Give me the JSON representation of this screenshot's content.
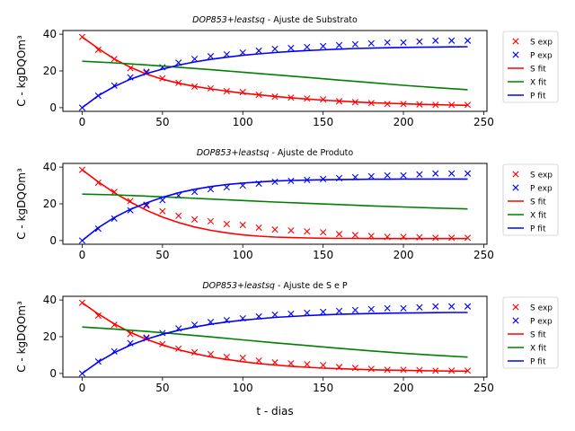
{
  "colors": {
    "S": "#ff0000",
    "X": "#008000",
    "P": "#0000ff",
    "axis": "#000000"
  },
  "chart_data": [
    {
      "type": "line",
      "title": "DOP853+leastsq - Ajuste de Substrato",
      "title_italic": "DOP853+leastsq",
      "title_rest": " - Ajuste de Substrato",
      "xlabel": "",
      "ylabel": "C - kgDQOm³",
      "xlim": [
        -12,
        252
      ],
      "ylim": [
        -2,
        42
      ],
      "xticks": [
        0,
        50,
        100,
        150,
        200,
        250
      ],
      "yticks": [
        0,
        20,
        40
      ],
      "legend": {
        "placement": "right",
        "entries": [
          "S exp",
          "P exp",
          "S fit",
          "X fit",
          "P fit"
        ]
      },
      "series": [
        {
          "name": "S exp",
          "kind": "scatter",
          "color": "S",
          "x": [
            0,
            10,
            20,
            30,
            40,
            50,
            60,
            70,
            80,
            90,
            100,
            110,
            120,
            130,
            140,
            150,
            160,
            170,
            180,
            190,
            200,
            210,
            220,
            230,
            240
          ],
          "y": [
            38.5,
            31.5,
            26.5,
            21.5,
            19,
            16,
            13.5,
            11.5,
            10.5,
            9,
            8.5,
            7,
            6,
            5.5,
            5,
            4.5,
            3.5,
            3,
            2.5,
            2,
            2,
            1.8,
            1.5,
            1.5,
            1.5
          ]
        },
        {
          "name": "P exp",
          "kind": "scatter",
          "color": "P",
          "x": [
            0,
            10,
            20,
            30,
            40,
            50,
            60,
            70,
            80,
            90,
            100,
            110,
            120,
            130,
            140,
            150,
            160,
            170,
            180,
            190,
            200,
            210,
            220,
            230,
            240
          ],
          "y": [
            0,
            6.5,
            12,
            16.5,
            19.5,
            22,
            24.5,
            26.5,
            28,
            29,
            30,
            31,
            32,
            32.5,
            33,
            33.5,
            34,
            34.5,
            35,
            35.5,
            35.5,
            36,
            36.5,
            36.5,
            36.5
          ]
        },
        {
          "name": "S fit",
          "kind": "line",
          "color": "S",
          "x": [
            0,
            10,
            20,
            30,
            40,
            50,
            60,
            70,
            80,
            90,
            100,
            110,
            120,
            130,
            140,
            150,
            160,
            170,
            180,
            190,
            200,
            210,
            220,
            230,
            240
          ],
          "y": [
            38.5,
            32.2,
            26.5,
            22,
            18.3,
            15.5,
            13.3,
            11.6,
            10.2,
            9,
            7.9,
            7,
            6.1,
            5.4,
            4.7,
            4.1,
            3.6,
            3.1,
            2.7,
            2.4,
            2.1,
            1.8,
            1.6,
            1.4,
            1.3
          ]
        },
        {
          "name": "X fit",
          "kind": "line",
          "color": "X",
          "x": [
            0,
            20,
            40,
            60,
            80,
            100,
            120,
            140,
            160,
            180,
            200,
            220,
            240
          ],
          "y": [
            25.3,
            24.4,
            23.3,
            22,
            20.7,
            19.3,
            17.9,
            16.5,
            15,
            13.6,
            12.2,
            10.9,
            9.8
          ]
        },
        {
          "name": "P fit",
          "kind": "line",
          "color": "P",
          "x": [
            0,
            10,
            20,
            30,
            40,
            50,
            60,
            70,
            80,
            90,
            100,
            110,
            120,
            130,
            140,
            150,
            160,
            170,
            180,
            190,
            200,
            210,
            220,
            230,
            240
          ],
          "y": [
            0,
            6.5,
            11.5,
            15.5,
            18.6,
            21,
            23.2,
            24.9,
            26.3,
            27.5,
            28.5,
            29.3,
            30,
            30.6,
            31.1,
            31.5,
            31.9,
            32.2,
            32.4,
            32.6,
            32.8,
            32.9,
            33,
            33.1,
            33.2
          ]
        }
      ]
    },
    {
      "type": "line",
      "title": "DOP853+leastsq - Ajuste de Produto",
      "title_italic": "DOP853+leastsq",
      "title_rest": " - Ajuste de Produto",
      "xlabel": "",
      "ylabel": "C - kgDQOm³",
      "xlim": [
        -12,
        252
      ],
      "ylim": [
        -2,
        42
      ],
      "xticks": [
        0,
        50,
        100,
        150,
        200,
        250
      ],
      "yticks": [
        0,
        20,
        40
      ],
      "legend": {
        "placement": "right",
        "entries": [
          "S exp",
          "P exp",
          "S fit",
          "X fit",
          "P fit"
        ]
      },
      "series": [
        {
          "name": "S exp",
          "kind": "scatter",
          "color": "S",
          "x": [
            0,
            10,
            20,
            30,
            40,
            50,
            60,
            70,
            80,
            90,
            100,
            110,
            120,
            130,
            140,
            150,
            160,
            170,
            180,
            190,
            200,
            210,
            220,
            230,
            240
          ],
          "y": [
            38.5,
            31.5,
            26.5,
            21.5,
            19,
            16,
            13.5,
            11.5,
            10.5,
            9,
            8.5,
            7,
            6,
            5.5,
            5,
            4.5,
            3.5,
            3,
            2.5,
            2,
            2,
            1.8,
            1.5,
            1.5,
            1.5
          ]
        },
        {
          "name": "P exp",
          "kind": "scatter",
          "color": "P",
          "x": [
            0,
            10,
            20,
            30,
            40,
            50,
            60,
            70,
            80,
            90,
            100,
            110,
            120,
            130,
            140,
            150,
            160,
            170,
            180,
            190,
            200,
            210,
            220,
            230,
            240
          ],
          "y": [
            0,
            6.5,
            12,
            16.5,
            19.5,
            22,
            24.5,
            26.5,
            28,
            29,
            30,
            31,
            32,
            32.5,
            33,
            33.5,
            34,
            34.5,
            35,
            35.5,
            35.5,
            36,
            36.5,
            36.5,
            36.5
          ]
        },
        {
          "name": "S fit",
          "kind": "line",
          "color": "S",
          "x": [
            0,
            10,
            20,
            30,
            40,
            50,
            60,
            70,
            80,
            90,
            100,
            110,
            120,
            130,
            140,
            150,
            160,
            170,
            180,
            190,
            200,
            210,
            220,
            230,
            240
          ],
          "y": [
            38.5,
            32,
            26,
            21,
            16.5,
            12.8,
            9.8,
            7.4,
            5.6,
            4.2,
            3.1,
            2.4,
            1.9,
            1.6,
            1.4,
            1.3,
            1.2,
            1.2,
            1.1,
            1.1,
            1.1,
            1.1,
            1.1,
            1.1,
            1.1
          ]
        },
        {
          "name": "X fit",
          "kind": "line",
          "color": "X",
          "x": [
            0,
            20,
            40,
            60,
            80,
            100,
            120,
            140,
            160,
            180,
            200,
            220,
            240
          ],
          "y": [
            25.3,
            24.9,
            24.2,
            23.4,
            22.6,
            21.8,
            21,
            20.3,
            19.6,
            18.9,
            18.3,
            17.7,
            17.2
          ]
        },
        {
          "name": "P fit",
          "kind": "line",
          "color": "P",
          "x": [
            0,
            10,
            20,
            30,
            40,
            50,
            60,
            70,
            80,
            90,
            100,
            110,
            120,
            130,
            140,
            150,
            160,
            170,
            180,
            190,
            200,
            210,
            220,
            230,
            240
          ],
          "y": [
            0,
            7,
            12.5,
            17,
            20.5,
            23.5,
            26,
            27.9,
            29.4,
            30.5,
            31.3,
            31.9,
            32.4,
            32.7,
            32.9,
            33.1,
            33.2,
            33.3,
            33.4,
            33.4,
            33.5,
            33.5,
            33.5,
            33.5,
            33.5
          ]
        }
      ]
    },
    {
      "type": "line",
      "title": "DOP853+leastsq - Ajuste de S e P",
      "title_italic": "DOP853+leastsq",
      "title_rest": " - Ajuste de S e P",
      "xlabel": "t - dias",
      "ylabel": "C - kgDQOm³",
      "xlim": [
        -12,
        252
      ],
      "ylim": [
        -2,
        42
      ],
      "xticks": [
        0,
        50,
        100,
        150,
        200,
        250
      ],
      "yticks": [
        0,
        20,
        40
      ],
      "legend": {
        "placement": "right",
        "entries": [
          "S exp",
          "P exp",
          "S fit",
          "X fit",
          "P fit"
        ]
      },
      "series": [
        {
          "name": "S exp",
          "kind": "scatter",
          "color": "S",
          "x": [
            0,
            10,
            20,
            30,
            40,
            50,
            60,
            70,
            80,
            90,
            100,
            110,
            120,
            130,
            140,
            150,
            160,
            170,
            180,
            190,
            200,
            210,
            220,
            230,
            240
          ],
          "y": [
            38.5,
            31.5,
            26.5,
            21.5,
            19,
            16,
            13.5,
            11.5,
            10.5,
            9,
            8.5,
            7,
            6,
            5.5,
            5,
            4.5,
            3.5,
            3,
            2.5,
            2,
            2,
            1.8,
            1.5,
            1.5,
            1.5
          ]
        },
        {
          "name": "P exp",
          "kind": "scatter",
          "color": "P",
          "x": [
            0,
            10,
            20,
            30,
            40,
            50,
            60,
            70,
            80,
            90,
            100,
            110,
            120,
            130,
            140,
            150,
            160,
            170,
            180,
            190,
            200,
            210,
            220,
            230,
            240
          ],
          "y": [
            0,
            6.5,
            12,
            16.5,
            19.5,
            22,
            24.5,
            26.5,
            28,
            29,
            30,
            31,
            32,
            32.5,
            33,
            33.5,
            34,
            34.5,
            35,
            35.5,
            35.5,
            36,
            36.5,
            36.5,
            36.5
          ]
        },
        {
          "name": "S fit",
          "kind": "line",
          "color": "S",
          "x": [
            0,
            10,
            20,
            30,
            40,
            50,
            60,
            70,
            80,
            90,
            100,
            110,
            120,
            130,
            140,
            150,
            160,
            170,
            180,
            190,
            200,
            210,
            220,
            230,
            240
          ],
          "y": [
            38.5,
            32.4,
            27,
            22.4,
            18.6,
            15.5,
            12.9,
            10.8,
            9,
            7.6,
            6.4,
            5.4,
            4.6,
            3.9,
            3.4,
            2.9,
            2.6,
            2.3,
            2,
            1.8,
            1.7,
            1.5,
            1.4,
            1.3,
            1.3
          ]
        },
        {
          "name": "X fit",
          "kind": "line",
          "color": "X",
          "x": [
            0,
            20,
            40,
            60,
            80,
            100,
            120,
            140,
            160,
            180,
            200,
            220,
            240
          ],
          "y": [
            25.3,
            24.2,
            22.9,
            21.4,
            19.9,
            18.3,
            16.7,
            15.2,
            13.7,
            12.3,
            11,
            9.9,
            8.9
          ]
        },
        {
          "name": "P fit",
          "kind": "line",
          "color": "P",
          "x": [
            0,
            10,
            20,
            30,
            40,
            50,
            60,
            70,
            80,
            90,
            100,
            110,
            120,
            130,
            140,
            150,
            160,
            170,
            180,
            190,
            200,
            210,
            220,
            230,
            240
          ],
          "y": [
            0,
            6.2,
            11.3,
            15.4,
            18.7,
            21.3,
            23.5,
            25.3,
            26.8,
            28,
            29,
            29.8,
            30.5,
            31,
            31.5,
            31.9,
            32.2,
            32.4,
            32.6,
            32.8,
            32.9,
            33,
            33.1,
            33.2,
            33.2
          ]
        }
      ]
    }
  ]
}
